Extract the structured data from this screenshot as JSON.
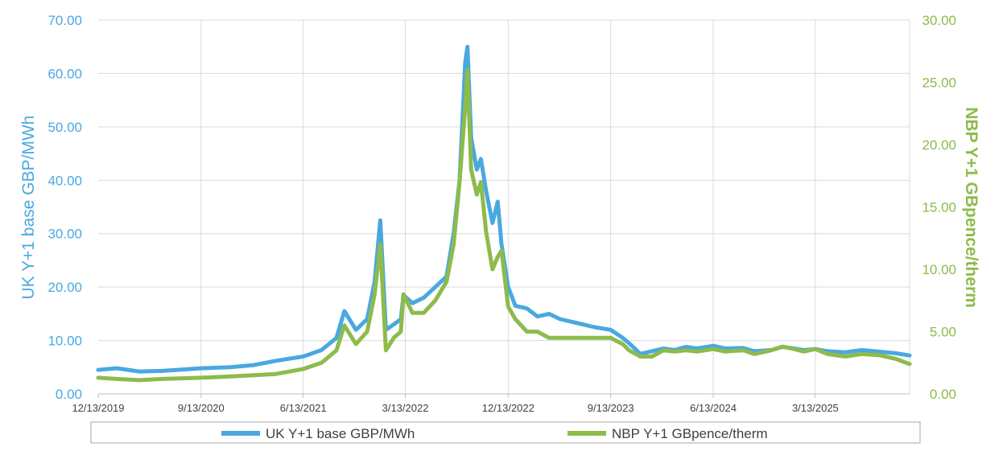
{
  "chart_data": {
    "type": "line",
    "title": "",
    "grid": true,
    "legend_position": "bottom",
    "x_ticks": [
      "12/13/2019",
      "9/13/2020",
      "6/13/2021",
      "3/13/2022",
      "12/13/2022",
      "9/13/2023",
      "6/13/2024",
      "3/13/2025"
    ],
    "y_left": {
      "label": "UK Y+1 base GBP/MWh",
      "range": [
        0,
        70
      ],
      "ticks": [
        "0.00",
        "10.00",
        "20.00",
        "30.00",
        "40.00",
        "50.00",
        "60.00",
        "70.00"
      ],
      "color": "#4aa8e0"
    },
    "y_right": {
      "label": "NBP Y+1 GBpence/therm",
      "range": [
        0,
        30
      ],
      "ticks": [
        "0.00",
        "5.00",
        "10.00",
        "15.00",
        "20.00",
        "25.00",
        "30.00"
      ],
      "color": "#8dbb4c"
    },
    "x_range": [
      "2019-12-13",
      "2025-11-20"
    ],
    "series": [
      {
        "name": "UK Y+1 base GBP/MWh",
        "axis": "left",
        "color": "#4aa8e0",
        "x": [
          "2019-12-13",
          "2020-02-01",
          "2020-04-01",
          "2020-06-01",
          "2020-09-13",
          "2020-12-01",
          "2021-02-01",
          "2021-04-01",
          "2021-06-13",
          "2021-08-01",
          "2021-09-10",
          "2021-10-01",
          "2021-11-01",
          "2021-12-01",
          "2021-12-21",
          "2022-01-05",
          "2022-01-20",
          "2022-02-10",
          "2022-03-01",
          "2022-03-08",
          "2022-04-01",
          "2022-05-01",
          "2022-06-01",
          "2022-07-01",
          "2022-07-20",
          "2022-08-05",
          "2022-08-20",
          "2022-08-26",
          "2022-09-05",
          "2022-09-20",
          "2022-10-01",
          "2022-10-15",
          "2022-11-01",
          "2022-11-15",
          "2022-11-25",
          "2022-12-13",
          "2023-01-01",
          "2023-02-01",
          "2023-03-01",
          "2023-04-01",
          "2023-05-01",
          "2023-06-01",
          "2023-07-01",
          "2023-08-01",
          "2023-09-13",
          "2023-10-15",
          "2023-11-01",
          "2023-12-01",
          "2024-01-01",
          "2024-02-01",
          "2024-03-01",
          "2024-04-01",
          "2024-05-01",
          "2024-06-13",
          "2024-07-15",
          "2024-09-01",
          "2024-10-01",
          "2024-11-15",
          "2024-12-15",
          "2025-01-15",
          "2025-02-10",
          "2025-03-13",
          "2025-04-15",
          "2025-06-01",
          "2025-07-15",
          "2025-09-01",
          "2025-10-15",
          "2025-11-20"
        ],
        "y": [
          4.5,
          4.8,
          4.2,
          4.3,
          4.8,
          5.0,
          5.4,
          6.2,
          7.0,
          8.2,
          10.5,
          15.5,
          12.0,
          14.0,
          21.0,
          32.5,
          12.0,
          13.0,
          14.0,
          18.5,
          17.0,
          18.0,
          20.0,
          22.0,
          30.0,
          40.0,
          62.0,
          65.0,
          48.0,
          42.0,
          44.0,
          38.0,
          32.0,
          36.0,
          28.0,
          20.0,
          16.5,
          16.0,
          14.5,
          15.0,
          14.0,
          13.5,
          13.0,
          12.5,
          12.0,
          10.5,
          9.5,
          7.5,
          8.0,
          8.5,
          8.2,
          8.8,
          8.5,
          9.0,
          8.5,
          8.6,
          8.0,
          8.2,
          8.8,
          8.5,
          8.2,
          8.4,
          8.0,
          7.8,
          8.2,
          7.9,
          7.6,
          7.2
        ]
      },
      {
        "name": "NBP Y+1 GBpence/therm",
        "axis": "right",
        "color": "#8dbb4c",
        "x": [
          "2019-12-13",
          "2020-02-01",
          "2020-04-01",
          "2020-06-01",
          "2020-09-13",
          "2020-12-01",
          "2021-02-01",
          "2021-04-01",
          "2021-06-13",
          "2021-08-01",
          "2021-09-10",
          "2021-10-01",
          "2021-11-01",
          "2021-12-01",
          "2021-12-21",
          "2022-01-05",
          "2022-01-20",
          "2022-02-10",
          "2022-03-01",
          "2022-03-08",
          "2022-04-01",
          "2022-05-01",
          "2022-06-01",
          "2022-07-01",
          "2022-07-20",
          "2022-08-05",
          "2022-08-20",
          "2022-08-26",
          "2022-09-05",
          "2022-09-20",
          "2022-10-01",
          "2022-10-15",
          "2022-11-01",
          "2022-11-15",
          "2022-11-25",
          "2022-12-13",
          "2023-01-01",
          "2023-02-01",
          "2023-03-01",
          "2023-04-01",
          "2023-05-01",
          "2023-06-01",
          "2023-07-01",
          "2023-08-01",
          "2023-09-13",
          "2023-10-15",
          "2023-11-01",
          "2023-12-01",
          "2024-01-01",
          "2024-02-01",
          "2024-03-01",
          "2024-04-01",
          "2024-05-01",
          "2024-06-13",
          "2024-07-15",
          "2024-09-01",
          "2024-10-01",
          "2024-11-15",
          "2024-12-15",
          "2025-01-15",
          "2025-02-10",
          "2025-03-13",
          "2025-04-15",
          "2025-06-01",
          "2025-07-15",
          "2025-09-01",
          "2025-10-15",
          "2025-11-20"
        ],
        "y": [
          1.3,
          1.2,
          1.1,
          1.2,
          1.3,
          1.4,
          1.5,
          1.6,
          2.0,
          2.5,
          3.5,
          5.5,
          4.0,
          5.0,
          8.0,
          12.0,
          3.5,
          4.5,
          5.0,
          8.0,
          6.5,
          6.5,
          7.5,
          9.0,
          12.0,
          17.0,
          23.0,
          26.0,
          18.0,
          16.0,
          17.0,
          13.0,
          10.0,
          11.0,
          11.5,
          7.0,
          6.0,
          5.0,
          5.0,
          4.5,
          4.5,
          4.5,
          4.5,
          4.5,
          4.5,
          4.0,
          3.5,
          3.0,
          3.0,
          3.5,
          3.4,
          3.5,
          3.4,
          3.6,
          3.4,
          3.5,
          3.2,
          3.5,
          3.8,
          3.6,
          3.4,
          3.6,
          3.2,
          3.0,
          3.2,
          3.1,
          2.8,
          2.4
        ]
      }
    ]
  }
}
